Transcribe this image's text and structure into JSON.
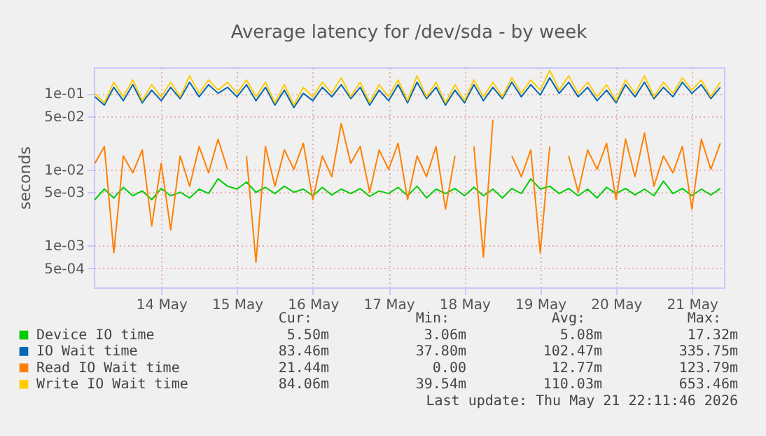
{
  "chart_data": {
    "type": "line",
    "title": "Average latency for /dev/sda - by week",
    "ylabel": "seconds",
    "log": true,
    "grid": true,
    "legend": "bottom",
    "line_style": "solid",
    "marker": "none",
    "ylim": [
      0.00028,
      0.22
    ],
    "yticks": [
      {
        "value": 0.0005,
        "label": "5e-04"
      },
      {
        "value": 0.001,
        "label": "1e-03"
      },
      {
        "value": 0.005,
        "label": "5e-03"
      },
      {
        "value": 0.01,
        "label": "1e-02"
      },
      {
        "value": 0.05,
        "label": "5e-02"
      },
      {
        "value": 0.1,
        "label": "1e-01"
      }
    ],
    "xlim": [
      "2026-05-13T14:40",
      "2026-05-21T22:10"
    ],
    "xticks": [
      {
        "value": "2026-05-14T12:00",
        "label": "14 May"
      },
      {
        "value": "2026-05-15T12:00",
        "label": "15 May"
      },
      {
        "value": "2026-05-16T12:00",
        "label": "16 May"
      },
      {
        "value": "2026-05-17T12:00",
        "label": "17 May"
      },
      {
        "value": "2026-05-18T12:00",
        "label": "18 May"
      },
      {
        "value": "2026-05-19T12:00",
        "label": "19 May"
      },
      {
        "value": "2026-05-20T12:00",
        "label": "20 May"
      },
      {
        "value": "2026-05-21T12:00",
        "label": "21 May"
      }
    ],
    "x": [
      "2026-05-13T15:00",
      "2026-05-13T18:00",
      "2026-05-13T21:00",
      "2026-05-14T00:00",
      "2026-05-14T03:00",
      "2026-05-14T06:00",
      "2026-05-14T09:00",
      "2026-05-14T12:00",
      "2026-05-14T15:00",
      "2026-05-14T18:00",
      "2026-05-14T21:00",
      "2026-05-15T00:00",
      "2026-05-15T03:00",
      "2026-05-15T06:00",
      "2026-05-15T09:00",
      "2026-05-15T12:00",
      "2026-05-15T15:00",
      "2026-05-15T18:00",
      "2026-05-15T21:00",
      "2026-05-16T00:00",
      "2026-05-16T03:00",
      "2026-05-16T06:00",
      "2026-05-16T09:00",
      "2026-05-16T12:00",
      "2026-05-16T15:00",
      "2026-05-16T18:00",
      "2026-05-16T21:00",
      "2026-05-17T00:00",
      "2026-05-17T03:00",
      "2026-05-17T06:00",
      "2026-05-17T09:00",
      "2026-05-17T12:00",
      "2026-05-17T15:00",
      "2026-05-17T18:00",
      "2026-05-17T21:00",
      "2026-05-18T00:00",
      "2026-05-18T03:00",
      "2026-05-18T06:00",
      "2026-05-18T09:00",
      "2026-05-18T12:00",
      "2026-05-18T15:00",
      "2026-05-18T18:00",
      "2026-05-18T21:00",
      "2026-05-19T00:00",
      "2026-05-19T03:00",
      "2026-05-19T06:00",
      "2026-05-19T09:00",
      "2026-05-19T12:00",
      "2026-05-19T15:00",
      "2026-05-19T18:00",
      "2026-05-19T21:00",
      "2026-05-20T00:00",
      "2026-05-20T03:00",
      "2026-05-20T06:00",
      "2026-05-20T09:00",
      "2026-05-20T12:00",
      "2026-05-20T15:00",
      "2026-05-20T18:00",
      "2026-05-20T21:00",
      "2026-05-21T00:00",
      "2026-05-21T03:00",
      "2026-05-21T06:00",
      "2026-05-21T09:00",
      "2026-05-21T12:00",
      "2026-05-21T15:00",
      "2026-05-21T18:00",
      "2026-05-21T21:00"
    ],
    "series": [
      {
        "name": "Device IO time",
        "color": "#00cc00",
        "values": [
          0.004,
          0.0055,
          0.0042,
          0.0058,
          0.0045,
          0.0052,
          0.004,
          0.0056,
          0.0045,
          0.005,
          0.0042,
          0.0055,
          0.0048,
          0.0075,
          0.006,
          0.0055,
          0.0068,
          0.005,
          0.0058,
          0.0048,
          0.006,
          0.005,
          0.0055,
          0.0045,
          0.0058,
          0.0046,
          0.0055,
          0.0048,
          0.0056,
          0.0044,
          0.0052,
          0.0048,
          0.0058,
          0.0045,
          0.006,
          0.0042,
          0.0055,
          0.0048,
          0.0056,
          0.0045,
          0.0058,
          0.0045,
          0.0055,
          0.0042,
          0.0056,
          0.0048,
          0.0075,
          0.0055,
          0.006,
          0.0048,
          0.0056,
          0.0045,
          0.0055,
          0.0042,
          0.0058,
          0.0048,
          0.0056,
          0.0046,
          0.0055,
          0.0045,
          0.007,
          0.0048,
          0.0056,
          0.0045,
          0.0055,
          0.0046,
          0.0056
        ]
      },
      {
        "name": "IO Wait time",
        "color": "#0066b3",
        "values": [
          0.09,
          0.07,
          0.12,
          0.08,
          0.13,
          0.075,
          0.11,
          0.08,
          0.12,
          0.085,
          0.14,
          0.09,
          0.13,
          0.1,
          0.12,
          0.09,
          0.13,
          0.08,
          0.12,
          0.07,
          0.11,
          0.065,
          0.1,
          0.08,
          0.12,
          0.09,
          0.13,
          0.085,
          0.12,
          0.07,
          0.11,
          0.08,
          0.13,
          0.075,
          0.14,
          0.085,
          0.12,
          0.07,
          0.11,
          0.075,
          0.13,
          0.08,
          0.12,
          0.085,
          0.14,
          0.09,
          0.13,
          0.095,
          0.16,
          0.1,
          0.14,
          0.09,
          0.12,
          0.08,
          0.11,
          0.075,
          0.13,
          0.09,
          0.14,
          0.085,
          0.12,
          0.09,
          0.14,
          0.1,
          0.13,
          0.085,
          0.12
        ]
      },
      {
        "name": "Read IO Wait time",
        "color": "#ff8000",
        "values": [
          0.012,
          0.02,
          0.0008,
          0.015,
          0.009,
          0.018,
          0.0018,
          0.012,
          0.0016,
          0.015,
          0.006,
          0.02,
          0.009,
          0.025,
          0.01,
          null,
          0.015,
          0.0006,
          0.02,
          0.006,
          0.018,
          0.01,
          0.022,
          0.004,
          0.015,
          0.008,
          0.04,
          0.012,
          0.02,
          0.005,
          0.018,
          0.01,
          0.022,
          0.004,
          0.015,
          0.008,
          0.02,
          0.003,
          0.015,
          null,
          0.02,
          0.0007,
          0.045,
          null,
          0.015,
          0.008,
          0.018,
          0.0008,
          0.02,
          null,
          0.015,
          0.005,
          0.018,
          0.01,
          0.022,
          0.004,
          0.025,
          0.008,
          0.03,
          0.006,
          0.015,
          0.009,
          0.02,
          0.003,
          0.025,
          0.01,
          0.022
        ]
      },
      {
        "name": "Write IO Wait time",
        "color": "#ffcc00",
        "values": [
          0.1,
          0.075,
          0.14,
          0.09,
          0.15,
          0.08,
          0.13,
          0.09,
          0.14,
          0.09,
          0.17,
          0.1,
          0.15,
          0.11,
          0.14,
          0.1,
          0.15,
          0.09,
          0.14,
          0.075,
          0.13,
          0.07,
          0.12,
          0.09,
          0.14,
          0.1,
          0.16,
          0.09,
          0.14,
          0.075,
          0.13,
          0.09,
          0.15,
          0.08,
          0.17,
          0.09,
          0.14,
          0.075,
          0.13,
          0.08,
          0.15,
          0.09,
          0.14,
          0.09,
          0.16,
          0.1,
          0.15,
          0.11,
          0.2,
          0.11,
          0.17,
          0.1,
          0.14,
          0.09,
          0.13,
          0.08,
          0.15,
          0.1,
          0.17,
          0.09,
          0.14,
          0.1,
          0.16,
          0.11,
          0.15,
          0.09,
          0.14
        ]
      }
    ],
    "annotations": [
      "Cur:",
      "Min:",
      "Avg:",
      "Max:",
      "5.50m",
      "3.06m",
      "5.08m",
      "17.32m",
      "83.46m",
      "37.80m",
      "102.47m",
      "335.75m",
      "21.44m",
      "0.00",
      "12.77m",
      "123.79m",
      "84.06m",
      "39.54m",
      "110.03m",
      "653.46m",
      "Last update: Thu May 21 22:11:46 2026"
    ]
  }
}
